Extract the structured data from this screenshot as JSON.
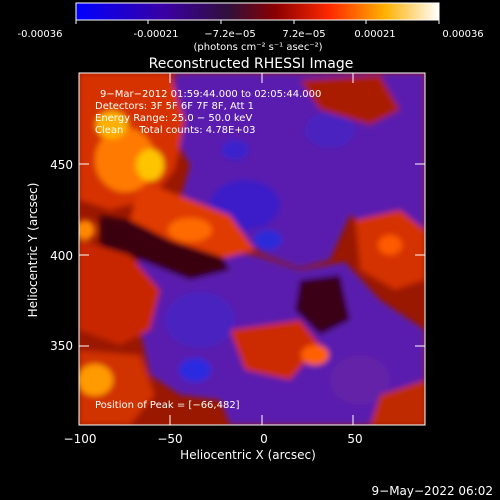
{
  "colorbar": {
    "tick_labels": [
      "-0.00036",
      "-0.00021",
      "−7.2e−05",
      "7.2e−05",
      "0.00021",
      "0.00036"
    ],
    "unit_label": "(photons cm⁻² s⁻¹ asec⁻²)",
    "value_range": [
      -0.00036,
      0.00036
    ]
  },
  "title": "Reconstructed RHESSI Image",
  "annotations": {
    "line1": "9−Mar−2012 01:59:44.000 to 02:05:44.000",
    "line2": "Detectors: 3F 5F 6F 7F 8F, Att 1",
    "line3": "Energy Range: 25.0 − 50.0 keV",
    "line4": "Clean     Total counts: 4.78E+03",
    "peak": "Position of Peak = [−66,482]"
  },
  "axes": {
    "xlabel": "Heliocentric X (arcsec)",
    "ylabel": "Heliocentric Y (arcsec)",
    "xlim": [
      -100,
      90
    ],
    "ylim": [
      303,
      492
    ],
    "xticks": [
      -100,
      -50,
      0,
      50
    ],
    "xtick_labels": [
      "−100",
      "−50",
      "0",
      "50"
    ],
    "yticks": [
      350,
      400,
      450
    ],
    "ytick_labels": [
      "350",
      "400",
      "450"
    ]
  },
  "footer": {
    "timestamp": "9−May−2022 06:02"
  },
  "chart_data": {
    "type": "heatmap",
    "title": "Reconstructed RHESSI Image",
    "xlabel": "Heliocentric X (arcsec)",
    "ylabel": "Heliocentric Y (arcsec)",
    "xlim": [
      -100,
      90
    ],
    "ylim": [
      303,
      492
    ],
    "peak_position": [
      -66,
      482
    ],
    "colormap": "blue-purple-red-yellow-white",
    "grid": false
  }
}
